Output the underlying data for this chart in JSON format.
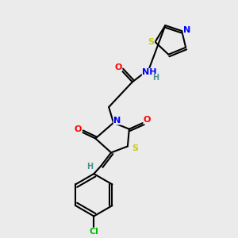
{
  "background_color": "#ebebeb",
  "bond_color": "#000000",
  "atom_colors": {
    "N": "#0000ff",
    "O": "#ff0000",
    "S": "#cccc00",
    "Cl": "#00bb00",
    "C": "#000000",
    "H": "#4a9090"
  },
  "figsize": [
    3.0,
    3.0
  ],
  "dpi": 100
}
